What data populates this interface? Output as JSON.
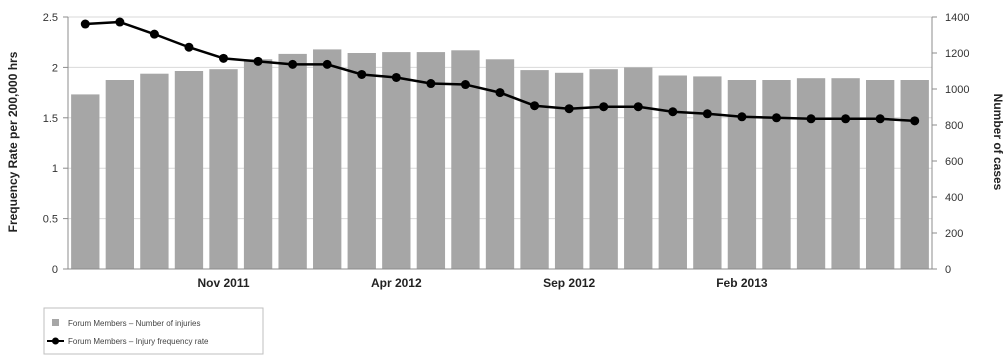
{
  "chart_data": {
    "type": "bar",
    "categories": [
      "",
      "",
      "",
      "",
      "",
      "",
      "",
      "",
      "",
      "",
      "",
      "",
      "",
      "",
      "",
      "",
      "",
      "",
      "",
      "",
      "",
      "",
      "",
      "",
      ""
    ],
    "x_tick_labels": [
      {
        "index": 4,
        "label": "Nov 2011"
      },
      {
        "index": 9,
        "label": "Apr 2012"
      },
      {
        "index": 14,
        "label": "Sep 2012"
      },
      {
        "index": 19,
        "label": "Feb 2013"
      }
    ],
    "series": [
      {
        "name": "Forum Members – Number of injuries",
        "type": "bar",
        "axis": "right",
        "color": "#a6a6a6",
        "values": [
          970,
          1050,
          1085,
          1100,
          1110,
          1165,
          1195,
          1220,
          1200,
          1205,
          1205,
          1215,
          1165,
          1105,
          1090,
          1110,
          1120,
          1075,
          1070,
          1050,
          1050,
          1060,
          1060,
          1050,
          1050
        ]
      },
      {
        "name": "Forum Members – Injury frequency rate",
        "type": "line",
        "axis": "left",
        "color": "#000000",
        "values": [
          2.43,
          2.45,
          2.33,
          2.2,
          2.09,
          2.06,
          2.03,
          2.03,
          1.93,
          1.9,
          1.84,
          1.83,
          1.75,
          1.62,
          1.59,
          1.61,
          1.61,
          1.56,
          1.54,
          1.51,
          1.5,
          1.49,
          1.49,
          1.49,
          1.47
        ]
      }
    ],
    "ylabel": "Frequency Rate per 200,000 hrs",
    "ylim": [
      0,
      2.5
    ],
    "y_ticks": [
      "0",
      "0.5",
      "1",
      "1.5",
      "2",
      "2.5"
    ],
    "ylabel_right": "Number of cases",
    "ylim_right": [
      0,
      1400
    ],
    "y_ticks_right": [
      "0",
      "200",
      "400",
      "600",
      "800",
      "1000",
      "1200",
      "1400"
    ],
    "grid": true,
    "legend_position": "bottom-left"
  }
}
